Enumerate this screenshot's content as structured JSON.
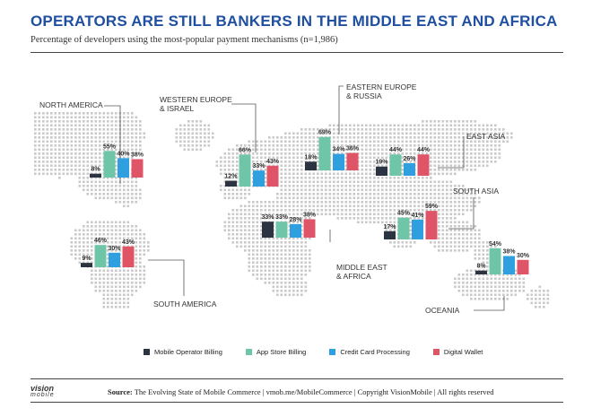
{
  "header": {
    "title": "OPERATORS ARE STILL BANKERS IN THE MIDDLE EAST AND AFRICA",
    "subtitle": "Percentage of developers using the most-popular payment mechanisms (n=1,986)"
  },
  "colors": {
    "mobile_operator_billing": "#2b3440",
    "app_store_billing": "#6fc5a8",
    "credit_card_processing": "#2f9fe0",
    "digital_wallet": "#e05468",
    "title": "#1f4fa0",
    "map_dots": "#c9c9c9"
  },
  "chart_data": {
    "type": "bar",
    "categories": [
      "Mobile Operator Billing",
      "App Store Billing",
      "Credit Card Processing",
      "Digital Wallet"
    ],
    "regions": [
      {
        "name": "NORTH AMERICA",
        "values": [
          8,
          55,
          40,
          38
        ]
      },
      {
        "name": "WESTERN EUROPE & ISRAEL",
        "values": [
          12,
          66,
          33,
          43
        ]
      },
      {
        "name": "EASTERN EUROPE & RUSSIA",
        "values": [
          18,
          69,
          34,
          36
        ]
      },
      {
        "name": "EAST ASIA",
        "values": [
          19,
          44,
          26,
          44
        ]
      },
      {
        "name": "MIDDLE EAST & AFRICA",
        "values": [
          33,
          33,
          28,
          38
        ]
      },
      {
        "name": "SOUTH ASIA",
        "values": [
          17,
          45,
          41,
          59
        ]
      },
      {
        "name": "SOUTH AMERICA",
        "values": [
          9,
          46,
          30,
          43
        ]
      },
      {
        "name": "OCEANIA",
        "values": [
          8,
          54,
          38,
          30
        ]
      }
    ],
    "value_suffix": "%"
  },
  "legend": {
    "items": [
      "Mobile Operator Billing",
      "App Store Billing",
      "Credit Card Processing",
      "Digital Wallet"
    ]
  },
  "footer": {
    "logo_line1": "vision",
    "logo_line2": "mobile",
    "source_label": "Source:",
    "source_text": "The Evolving State of Mobile Commerce  |  vmob.me/MobileCommerce  |  Copyright VisionMobile  |  All rights reserved"
  }
}
